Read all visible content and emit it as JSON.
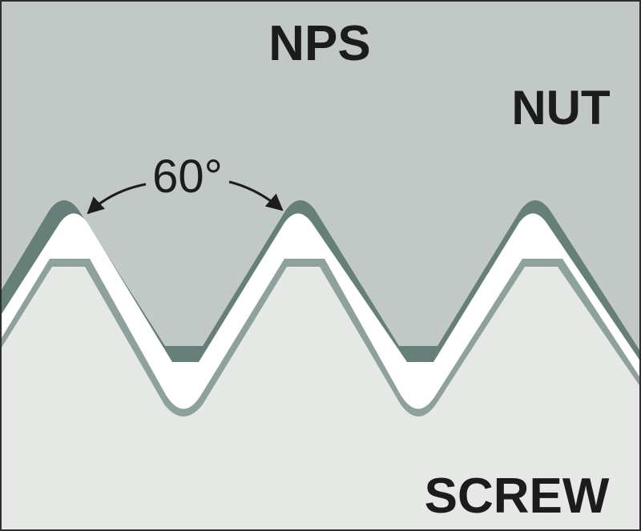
{
  "labels": {
    "title": "NPS",
    "nut": "NUT",
    "angle": "60°",
    "screw": "SCREW"
  },
  "colors": {
    "nut_body": "#c1c8c5",
    "nut_thread_dark": "#667f78",
    "screw_body": "#e6e8e6",
    "screw_thread_edge": "#8fa19b",
    "clearance_gap": "#ffffff",
    "text": "#1c1c1c",
    "frame": "#2e2e2e"
  }
}
